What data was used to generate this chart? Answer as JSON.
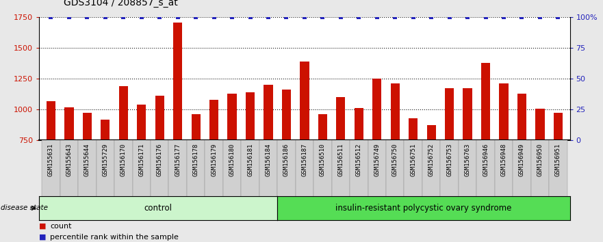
{
  "title": "GDS3104 / 208857_s_at",
  "samples": [
    "GSM155631",
    "GSM155643",
    "GSM155644",
    "GSM155729",
    "GSM156170",
    "GSM156171",
    "GSM156176",
    "GSM156177",
    "GSM156178",
    "GSM156179",
    "GSM156180",
    "GSM156181",
    "GSM156184",
    "GSM156186",
    "GSM156187",
    "GSM156510",
    "GSM156511",
    "GSM156512",
    "GSM156749",
    "GSM156750",
    "GSM156751",
    "GSM156752",
    "GSM156753",
    "GSM156763",
    "GSM156946",
    "GSM156948",
    "GSM156949",
    "GSM156950",
    "GSM156951"
  ],
  "bar_values": [
    1065,
    1015,
    975,
    920,
    1190,
    1040,
    1110,
    1705,
    960,
    1080,
    1130,
    1140,
    1200,
    1160,
    1390,
    960,
    1100,
    1010,
    1250,
    1210,
    930,
    875,
    1175,
    1170,
    1380,
    1210,
    1130,
    1005,
    975
  ],
  "percentile_values": [
    100,
    100,
    100,
    100,
    100,
    100,
    100,
    100,
    100,
    100,
    100,
    100,
    100,
    100,
    100,
    100,
    100,
    100,
    100,
    100,
    100,
    100,
    100,
    100,
    100,
    100,
    100,
    100,
    100
  ],
  "group_labels": [
    "control",
    "insulin-resistant polycystic ovary syndrome"
  ],
  "ctrl_count": 13,
  "bar_color": "#CC1100",
  "percentile_color": "#2222BB",
  "ylim_left": [
    750,
    1750
  ],
  "ylim_right": [
    0,
    100
  ],
  "yticks_left": [
    750,
    1000,
    1250,
    1500,
    1750
  ],
  "yticks_right": [
    0,
    25,
    50,
    75,
    100
  ],
  "bg_color": "#e8e8e8",
  "plot_bg": "#ffffff",
  "xtick_bg": "#d0d0d0",
  "ctrl_color": "#ccf5cc",
  "pcos_color": "#55dd55",
  "title_fontsize": 10,
  "bar_width": 0.5,
  "disease_label": "disease state",
  "legend_count_label": "count",
  "legend_pct_label": "percentile rank within the sample"
}
